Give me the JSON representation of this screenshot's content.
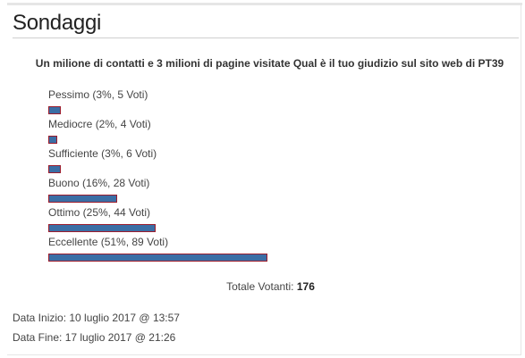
{
  "widget": {
    "title": "Sondaggi"
  },
  "poll": {
    "question": "Un milione di contatti e 3 milioni di pagine visitate Qual è il tuo giudizio sul sito web di PT39",
    "answers": [
      {
        "label": "Pessimo (3%, 5 Voti)",
        "percent": 3,
        "votes": 5
      },
      {
        "label": "Mediocre (2%, 4 Voti)",
        "percent": 2,
        "votes": 4
      },
      {
        "label": "Sufficiente (3%, 6 Voti)",
        "percent": 3,
        "votes": 6
      },
      {
        "label": "Buono (16%, 28 Voti)",
        "percent": 16,
        "votes": 28
      },
      {
        "label": "Ottimo (25%, 44 Voti)",
        "percent": 25,
        "votes": 44
      },
      {
        "label": "Eccellente (51%, 89 Voti)",
        "percent": 51,
        "votes": 89
      }
    ],
    "total_label": "Totale Votanti:",
    "total_value": "176",
    "start_date": "Data Inizio: 10 luglio 2017 @ 13:57",
    "end_date": "Data Fine: 17 luglio 2017 @ 21:26",
    "colors": {
      "bar_fill": "#3b6ea5",
      "bar_border": "#9b1c2c"
    }
  }
}
